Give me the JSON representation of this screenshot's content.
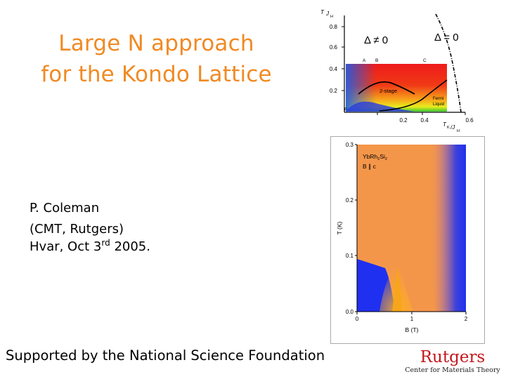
{
  "slide": {
    "title_line1": "Large N approach",
    "title_line2": "for the Kondo Lattice",
    "author_name": "P. Coleman",
    "author_affil": "(CMT, Rutgers)",
    "venue_prefix": "Hvar, Oct 3",
    "venue_sup": "rd",
    "venue_year": "2005.",
    "footer": "Supported by the National Science Foundation"
  },
  "logo": {
    "name": "Rutgers",
    "subtitle": "Center for Materials Theory",
    "color": "#C4161C"
  },
  "figure_phase": {
    "y_label_T": "T",
    "y_label_J": "J",
    "y_label_sub": "H",
    "y_ticks": [
      "0.8",
      "0.6",
      "0.4",
      "0.2"
    ],
    "x_ticks": [
      "0.2",
      "0.4",
      "0.6"
    ],
    "x_label_T": "T",
    "x_label_K": "K",
    "x_label_slash": "/J",
    "x_label_sub": "H",
    "region_label_broken": "Δ ≠ 0",
    "region_label_zero": "Δ = 0",
    "point_a": "A",
    "point_b": "B",
    "point_c": "C",
    "label_two_stage": "2-stage",
    "label_fermi": "Fermi",
    "label_liquid": "Liquid",
    "label_f": "F"
  },
  "figure_ybrh": {
    "material_base": "YbRh",
    "material_sub1": "2",
    "material_mid": "Si",
    "material_sub2": "2",
    "field_dir": "B ∥ c",
    "y_axis_label": "T (K)",
    "x_axis_label": "B (T)",
    "y_ticks": [
      "0.3",
      "0.2",
      "0.1",
      "0.0"
    ],
    "x_ticks": [
      "0",
      "1",
      "2"
    ]
  }
}
